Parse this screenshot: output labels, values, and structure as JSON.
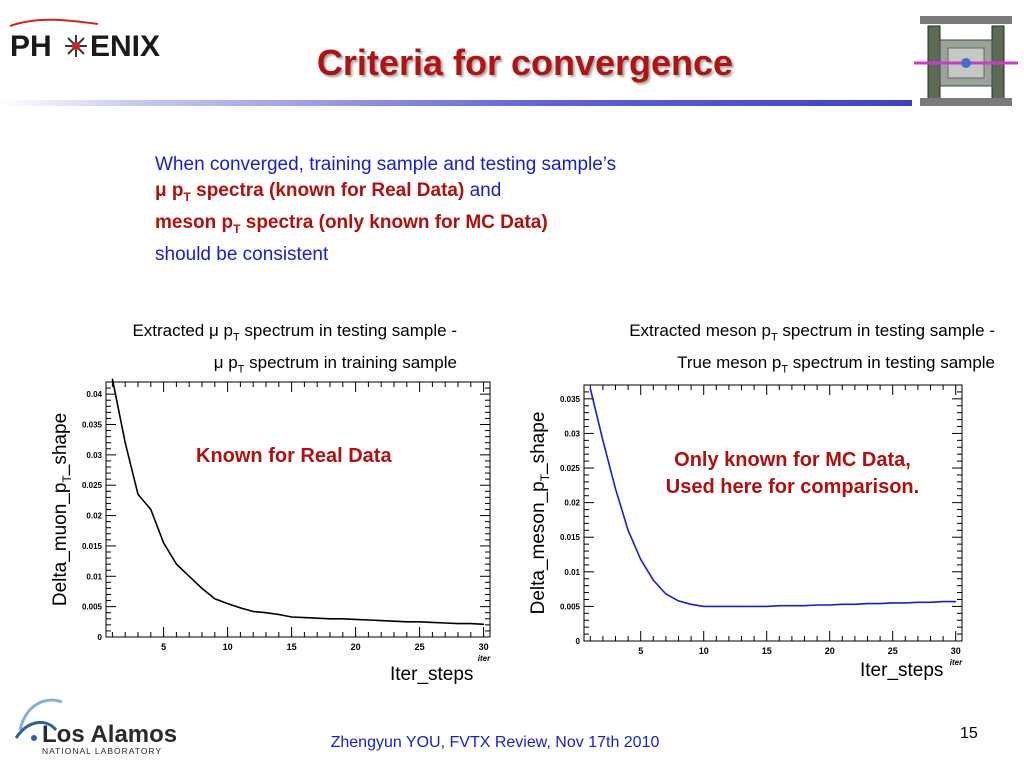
{
  "header": {
    "logo_text": "PH ENIX",
    "title": "Criteria for convergence"
  },
  "intro": {
    "line1": "When converged,  training sample and testing sample’s",
    "line2_red_a": "μ p",
    "line2_red_sub": "T",
    "line2_red_b": " spectra (known for Real Data)",
    "line2_tail": " and",
    "line3_red_a": "meson p",
    "line3_red_sub": "T",
    "line3_red_b": " spectra (only known for MC Data)",
    "line4": "should be consistent"
  },
  "captions": {
    "left_1a": "Extracted μ p",
    "left_1sub": "T",
    "left_1b": " spectrum in testing sample -",
    "left_2a": "μ p",
    "left_2sub": "T",
    "left_2b": " spectrum in training sample",
    "right_1a": "Extracted meson p",
    "right_1sub": "T",
    "right_1b": " spectrum in testing sample -",
    "right_2a": "True meson p",
    "right_2sub": "T",
    "right_2b": " spectrum in testing sample"
  },
  "notes": {
    "left": "Known for Real Data",
    "right_1": "Only known for MC Data,",
    "right_2": "Used here for comparison."
  },
  "footer": {
    "text": "Zhengyun YOU, FVTX Review, Nov 17th 2010",
    "page": "15",
    "lab_name": "Los Alamos",
    "lab_sub": "NATIONAL LABORATORY"
  },
  "chart_data": [
    {
      "type": "line",
      "ylabel": "Delta_muon_p_T_shape",
      "xlabel": "Iter_steps",
      "x_axis_tag": "iter",
      "xlim": [
        0.5,
        30.5
      ],
      "ylim": [
        0,
        0.042
      ],
      "xticks": [
        5,
        10,
        15,
        20,
        25,
        30
      ],
      "yticks": [
        0,
        0.005,
        0.01,
        0.015,
        0.02,
        0.025,
        0.03,
        0.035,
        0.04
      ],
      "yticklabels": [
        "0",
        "0.005",
        "0.01",
        "0.015",
        "0.02",
        "0.025",
        "0.03",
        "0.035",
        "0.04"
      ],
      "color": "#000000",
      "x": [
        1,
        2,
        3,
        4,
        5,
        6,
        7,
        8,
        9,
        10,
        11,
        12,
        13,
        14,
        15,
        16,
        17,
        18,
        19,
        20,
        21,
        22,
        23,
        24,
        25,
        26,
        27,
        28,
        29,
        30
      ],
      "y": [
        0.0425,
        0.032,
        0.0235,
        0.021,
        0.0155,
        0.012,
        0.01,
        0.008,
        0.0063,
        0.0055,
        0.0048,
        0.0042,
        0.004,
        0.0037,
        0.0033,
        0.0032,
        0.0031,
        0.003,
        0.003,
        0.0029,
        0.0028,
        0.0027,
        0.0026,
        0.0025,
        0.0025,
        0.0024,
        0.0023,
        0.0022,
        0.0022,
        0.0021
      ]
    },
    {
      "type": "line",
      "ylabel": "Delta_meson_p_T_shape",
      "xlabel": "Iter_steps",
      "x_axis_tag": "iter",
      "xlim": [
        0.5,
        30.5
      ],
      "ylim": [
        0,
        0.037
      ],
      "xticks": [
        5,
        10,
        15,
        20,
        25,
        30
      ],
      "yticks": [
        0,
        0.005,
        0.01,
        0.015,
        0.02,
        0.025,
        0.03,
        0.035
      ],
      "yticklabels": [
        "0",
        "0.005",
        "0.01",
        "0.015",
        "0.02",
        "0.025",
        "0.03",
        "0.035"
      ],
      "color": "#1a1ad8",
      "x": [
        1,
        2,
        3,
        4,
        5,
        6,
        7,
        8,
        9,
        10,
        11,
        12,
        13,
        14,
        15,
        16,
        17,
        18,
        19,
        20,
        21,
        22,
        23,
        24,
        25,
        26,
        27,
        28,
        29,
        30
      ],
      "y": [
        0.0365,
        0.029,
        0.022,
        0.016,
        0.0118,
        0.0088,
        0.0068,
        0.0058,
        0.0053,
        0.005,
        0.005,
        0.005,
        0.005,
        0.005,
        0.005,
        0.0051,
        0.0051,
        0.0051,
        0.0052,
        0.0052,
        0.0053,
        0.0053,
        0.0054,
        0.0054,
        0.0055,
        0.0055,
        0.0056,
        0.0056,
        0.0057,
        0.0057
      ]
    }
  ]
}
